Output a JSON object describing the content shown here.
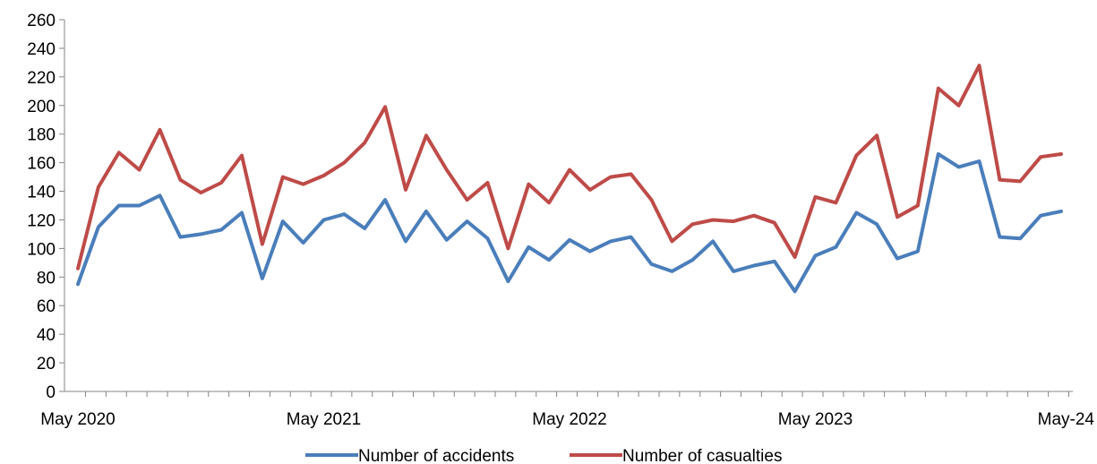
{
  "chart_data": {
    "type": "line",
    "title": "",
    "xlabel": "",
    "ylabel": "",
    "ylim": [
      0,
      260
    ],
    "yticks": [
      "0",
      "20",
      "40",
      "60",
      "80",
      "100",
      "120",
      "140",
      "160",
      "180",
      "200",
      "220",
      "240",
      "260"
    ],
    "x": [
      "May 2020",
      "Jun 2020",
      "Jul 2020",
      "Aug 2020",
      "Sep 2020",
      "Oct 2020",
      "Nov 2020",
      "Dec 2020",
      "Jan 2021",
      "Feb 2021",
      "Mar 2021",
      "Apr 2021",
      "May 2021",
      "Jun 2021",
      "Jul 2021",
      "Aug 2021",
      "Sep 2021",
      "Oct 2021",
      "Nov 2021",
      "Dec 2021",
      "Jan 2022",
      "Feb 2022",
      "Mar 2022",
      "Apr 2022",
      "May 2022",
      "Jun 2022",
      "Jul 2022",
      "Aug 2022",
      "Sep 2022",
      "Oct 2022",
      "Nov 2022",
      "Dec 2022",
      "Jan 2023",
      "Feb 2023",
      "Mar 2023",
      "Apr 2023",
      "May 2023",
      "Jun 2023",
      "Jul 2023",
      "Aug 2023",
      "Sep 2023",
      "Oct 2023",
      "Nov 2023",
      "Dec 2023",
      "Jan 2024",
      "Feb 2024",
      "Mar 2024",
      "Apr 2024",
      "May 2024"
    ],
    "xtick_labels": [
      {
        "index": 0,
        "label": "May 2020"
      },
      {
        "index": 12,
        "label": "May 2021"
      },
      {
        "index": 24,
        "label": "May 2022"
      },
      {
        "index": 36,
        "label": "May 2023"
      },
      {
        "index": 48,
        "label": "May-24"
      }
    ],
    "legend_position": "bottom",
    "grid": false,
    "series": [
      {
        "name": "Number of accidents",
        "color": "#4a7ebb",
        "values": [
          75,
          115,
          130,
          130,
          137,
          108,
          110,
          113,
          125,
          79,
          119,
          104,
          120,
          124,
          114,
          134,
          105,
          126,
          106,
          119,
          107,
          77,
          101,
          92,
          106,
          98,
          105,
          108,
          89,
          84,
          92,
          105,
          84,
          88,
          91,
          70,
          95,
          101,
          125,
          117,
          93,
          98,
          166,
          157,
          161,
          108,
          107,
          123,
          126
        ]
      },
      {
        "name": "Number of casualties",
        "color": "#be4b48",
        "values": [
          86,
          143,
          167,
          155,
          183,
          148,
          139,
          146,
          165,
          103,
          150,
          145,
          151,
          160,
          174,
          199,
          141,
          179,
          155,
          134,
          146,
          100,
          145,
          132,
          155,
          141,
          150,
          152,
          134,
          105,
          117,
          120,
          119,
          123,
          118,
          94,
          136,
          132,
          165,
          179,
          122,
          130,
          212,
          200,
          228,
          148,
          147,
          164,
          166
        ]
      }
    ]
  }
}
